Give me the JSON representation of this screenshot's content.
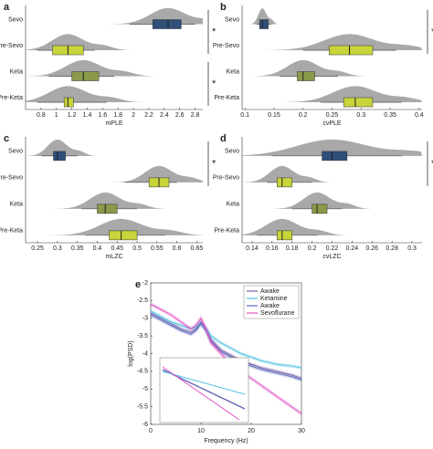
{
  "chart_data": [
    {
      "type": "raincloud",
      "label": "a",
      "xlabel": "mPLE",
      "xlim": [
        0.6,
        2.9
      ],
      "xticks": [
        0.8,
        1,
        1.2,
        1.4,
        1.6,
        1.8,
        2,
        2.2,
        2.4,
        2.6,
        2.8
      ],
      "categories": [
        "Sevo",
        "Pre-Sevo",
        "Keta",
        "Pre-Keta"
      ],
      "boxes": [
        {
          "whislo": 1.95,
          "q1": 2.25,
          "median": 2.45,
          "q3": 2.62,
          "whishi": 2.8,
          "color": "#2e4f78"
        },
        {
          "whislo": 0.75,
          "q1": 0.95,
          "median": 1.15,
          "q3": 1.35,
          "whishi": 1.5,
          "color": "#c8d43a"
        },
        {
          "whislo": 0.9,
          "q1": 1.2,
          "median": 1.35,
          "q3": 1.55,
          "whishi": 1.75,
          "color": "#8a9a4a"
        },
        {
          "whislo": 0.75,
          "q1": 1.1,
          "median": 1.15,
          "q3": 1.22,
          "whishi": 1.65,
          "color": "#c8d43a"
        }
      ],
      "significance": [
        {
          "label": "*",
          "pair": [
            "Sevo",
            "Pre-Sevo"
          ]
        },
        {
          "label": "*",
          "pair": [
            "Keta",
            "Pre-Keta"
          ]
        }
      ]
    },
    {
      "type": "raincloud",
      "label": "b",
      "xlabel": "cvPLE",
      "xlim": [
        0.095,
        0.405
      ],
      "xticks": [
        0.1,
        0.15,
        0.2,
        0.25,
        0.3,
        0.35,
        0.4
      ],
      "categories": [
        "Sevo",
        "Pre-Sevo",
        "Keta",
        "Pre-Keta"
      ],
      "boxes": [
        {
          "whislo": 0.12,
          "q1": 0.125,
          "median": 0.13,
          "q3": 0.14,
          "whishi": 0.145,
          "color": "#2e4f78"
        },
        {
          "whislo": 0.2,
          "q1": 0.245,
          "median": 0.28,
          "q3": 0.32,
          "whishi": 0.36,
          "color": "#c8d43a"
        },
        {
          "whislo": 0.16,
          "q1": 0.19,
          "median": 0.2,
          "q3": 0.22,
          "whishi": 0.26,
          "color": "#8a9a4a"
        },
        {
          "whislo": 0.23,
          "q1": 0.27,
          "median": 0.29,
          "q3": 0.32,
          "whishi": 0.37,
          "color": "#c8d43a"
        }
      ],
      "significance": [
        {
          "label": "*",
          "pair": [
            "Sevo",
            "Pre-Sevo"
          ]
        }
      ]
    },
    {
      "type": "raincloud",
      "label": "c",
      "xlabel": "mLZC",
      "xlim": [
        0.22,
        0.665
      ],
      "xticks": [
        0.25,
        0.3,
        0.35,
        0.4,
        0.45,
        0.5,
        0.55,
        0.6,
        0.65
      ],
      "categories": [
        "Sevo",
        "Pre-Sevo",
        "Keta",
        "Pre-Keta"
      ],
      "boxes": [
        {
          "whislo": 0.26,
          "q1": 0.29,
          "median": 0.3,
          "q3": 0.32,
          "whishi": 0.35,
          "color": "#2e4f78"
        },
        {
          "whislo": 0.47,
          "q1": 0.53,
          "median": 0.555,
          "q3": 0.58,
          "whishi": 0.6,
          "color": "#c8d43a"
        },
        {
          "whislo": 0.36,
          "q1": 0.4,
          "median": 0.42,
          "q3": 0.45,
          "whishi": 0.5,
          "color": "#8a9a4a"
        },
        {
          "whislo": 0.37,
          "q1": 0.43,
          "median": 0.46,
          "q3": 0.5,
          "whishi": 0.57,
          "color": "#c8d43a"
        }
      ],
      "significance": [
        {
          "label": "*",
          "pair": [
            "Sevo",
            "Pre-Sevo"
          ]
        }
      ]
    },
    {
      "type": "raincloud",
      "label": "d",
      "xlabel": "cvLZC",
      "xlim": [
        0.13,
        0.31
      ],
      "xticks": [
        0.14,
        0.16,
        0.18,
        0.2,
        0.22,
        0.24,
        0.26,
        0.28,
        0.3
      ],
      "categories": [
        "Sevo",
        "Pre-Sevo",
        "Keta",
        "Pre-Keta"
      ],
      "boxes": [
        {
          "whislo": 0.16,
          "q1": 0.21,
          "median": 0.22,
          "q3": 0.235,
          "whishi": 0.29,
          "color": "#2e4f78"
        },
        {
          "whislo": 0.155,
          "q1": 0.165,
          "median": 0.17,
          "q3": 0.18,
          "whishi": 0.2,
          "color": "#c8d43a"
        },
        {
          "whislo": 0.18,
          "q1": 0.2,
          "median": 0.205,
          "q3": 0.215,
          "whishi": 0.23,
          "color": "#8a9a4a"
        },
        {
          "whislo": 0.145,
          "q1": 0.165,
          "median": 0.17,
          "q3": 0.18,
          "whishi": 0.205,
          "color": "#c8d43a"
        }
      ],
      "significance": [
        {
          "label": "*",
          "pair": [
            "Sevo",
            "Pre-Sevo"
          ]
        }
      ]
    },
    {
      "type": "line",
      "label": "e",
      "xlabel": "Frequency (Hz)",
      "ylabel": "log(PSD)",
      "xlim": [
        0,
        30
      ],
      "xticks": [
        0,
        10,
        20,
        30
      ],
      "ylim": [
        -6,
        -2
      ],
      "yticks": [
        -6,
        -5.5,
        -5,
        -4.5,
        -4,
        -3.5,
        -3,
        -2.5,
        -2
      ],
      "legend": "upper right",
      "x": [
        0,
        2,
        4,
        6,
        8,
        9,
        10,
        11,
        12,
        14,
        16,
        18,
        20,
        22,
        25,
        28,
        30
      ],
      "series": [
        {
          "name": "Awake",
          "color": "#7b5ea7",
          "values": [
            -2.85,
            -3.0,
            -3.15,
            -3.3,
            -3.4,
            -3.3,
            -3.1,
            -3.3,
            -3.6,
            -3.9,
            -4.05,
            -4.2,
            -4.3,
            -4.4,
            -4.5,
            -4.6,
            -4.7
          ]
        },
        {
          "name": "Ketamine",
          "color": "#4fc3e0",
          "values": [
            -2.8,
            -2.95,
            -3.1,
            -3.2,
            -3.3,
            -3.25,
            -3.15,
            -3.3,
            -3.5,
            -3.7,
            -3.85,
            -4.0,
            -4.1,
            -4.2,
            -4.3,
            -4.35,
            -4.4
          ]
        },
        {
          "name": "Awake",
          "color": "#5c6bc0",
          "values": [
            -2.9,
            -3.05,
            -3.2,
            -3.35,
            -3.45,
            -3.35,
            -3.15,
            -3.35,
            -3.65,
            -3.95,
            -4.1,
            -4.25,
            -4.35,
            -4.45,
            -4.55,
            -4.65,
            -4.75
          ]
        },
        {
          "name": "Sevoflurane",
          "color": "#e055c8",
          "values": [
            -2.6,
            -2.75,
            -2.9,
            -3.1,
            -3.3,
            -3.2,
            -3.0,
            -3.3,
            -3.7,
            -4.0,
            -4.3,
            -4.5,
            -4.7,
            -4.9,
            -5.2,
            -5.5,
            -5.7
          ]
        }
      ]
    }
  ]
}
